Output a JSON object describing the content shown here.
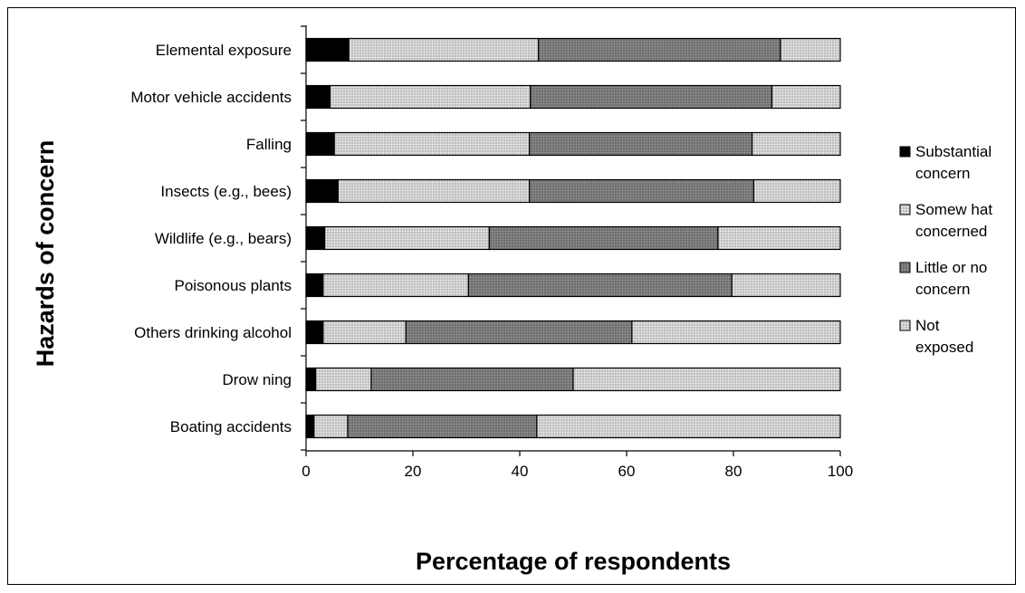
{
  "chart_data": {
    "type": "bar",
    "orientation": "horizontal",
    "stacked": true,
    "categories": [
      "Elemental exposure",
      "Motor vehicle accidents",
      "Falling",
      "Insects (e.g., bees)",
      "Wildlife (e.g., bears)",
      "Poisonous plants",
      "Others drinking alcohol",
      "Drow ning",
      "Boating accidents"
    ],
    "series": [
      {
        "name": "Substantial concern",
        "color": "#000000",
        "values": [
          8,
          4.5,
          5.3,
          6,
          3.5,
          3.2,
          3.2,
          1.8,
          1.5
        ]
      },
      {
        "name": "Somew hat concerned",
        "color": "#d4d4d4",
        "values": [
          35.5,
          37.5,
          36.5,
          35.8,
          30.8,
          27.2,
          15.5,
          10.4,
          6.3
        ]
      },
      {
        "name": "Little or no concern",
        "color": "#7f7f7f",
        "values": [
          45.3,
          45.2,
          41.7,
          42,
          42.8,
          49.3,
          42.3,
          37.8,
          35.4
        ]
      },
      {
        "name": "Not exposed",
        "color": "#dcdcdc",
        "values": [
          11.2,
          12.8,
          16.5,
          16.2,
          22.9,
          20.3,
          39,
          50,
          56.8
        ]
      }
    ],
    "legend_entries": [
      {
        "lines": [
          "Substantial",
          "concern"
        ]
      },
      {
        "lines": [
          "Somew hat",
          "concerned"
        ]
      },
      {
        "lines": [
          "Little or no",
          "concern"
        ]
      },
      {
        "lines": [
          "Not",
          "exposed"
        ]
      }
    ],
    "xlabel": "Percentage of respondents",
    "ylabel": "Hazards of concern",
    "xlim": [
      0,
      100
    ],
    "xticks": [
      "0",
      "20",
      "40",
      "60",
      "80",
      "100"
    ],
    "grid": false,
    "legend": "right"
  }
}
